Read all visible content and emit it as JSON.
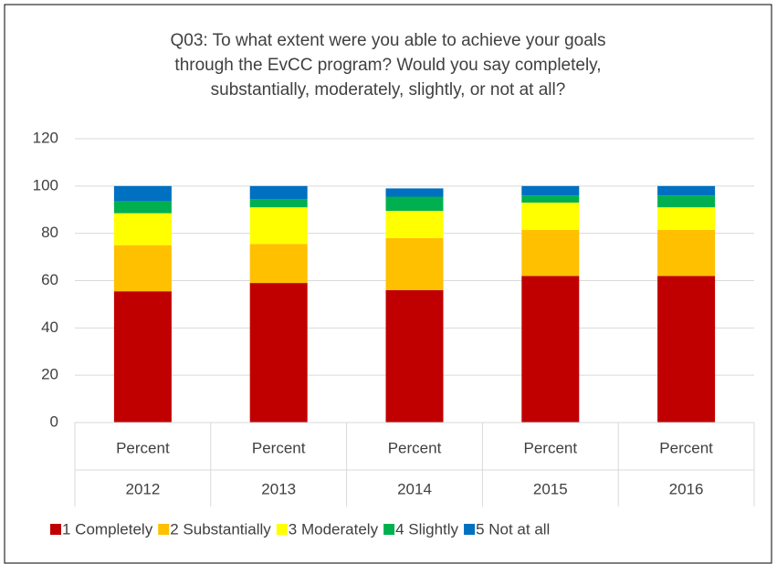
{
  "chart_data": {
    "type": "stacked_bar",
    "title": [
      "Q03: To what extent were you able to achieve your goals",
      "through the EvCC program? Would you say completely,",
      "substantially, moderately, slightly, or not at all?"
    ],
    "categories": [
      "2012",
      "2013",
      "2014",
      "2015",
      "2016"
    ],
    "category_sublabels": [
      "Percent",
      "Percent",
      "Percent",
      "Percent",
      "Percent"
    ],
    "series": [
      {
        "name": "1 Completely",
        "color": "#c00000",
        "values": [
          55.5,
          59,
          56,
          62,
          62
        ]
      },
      {
        "name": "2 Substantially",
        "color": "#ffc000",
        "values": [
          19.5,
          16.5,
          22,
          19.5,
          19.5
        ]
      },
      {
        "name": "3 Moderately",
        "color": "#ffff00",
        "values": [
          13.5,
          15.5,
          11.5,
          11.5,
          9.5
        ]
      },
      {
        "name": "4 Slightly",
        "color": "#00b050",
        "values": [
          5,
          3.5,
          6,
          3,
          5
        ]
      },
      {
        "name": "5 Not at all",
        "color": "#0070c0",
        "values": [
          6.5,
          5.5,
          3.5,
          4,
          4
        ]
      }
    ],
    "ylim": [
      0,
      120
    ],
    "yticks": [
      0,
      20,
      40,
      60,
      80,
      100,
      120
    ],
    "grid": true,
    "legend": "bottom"
  }
}
